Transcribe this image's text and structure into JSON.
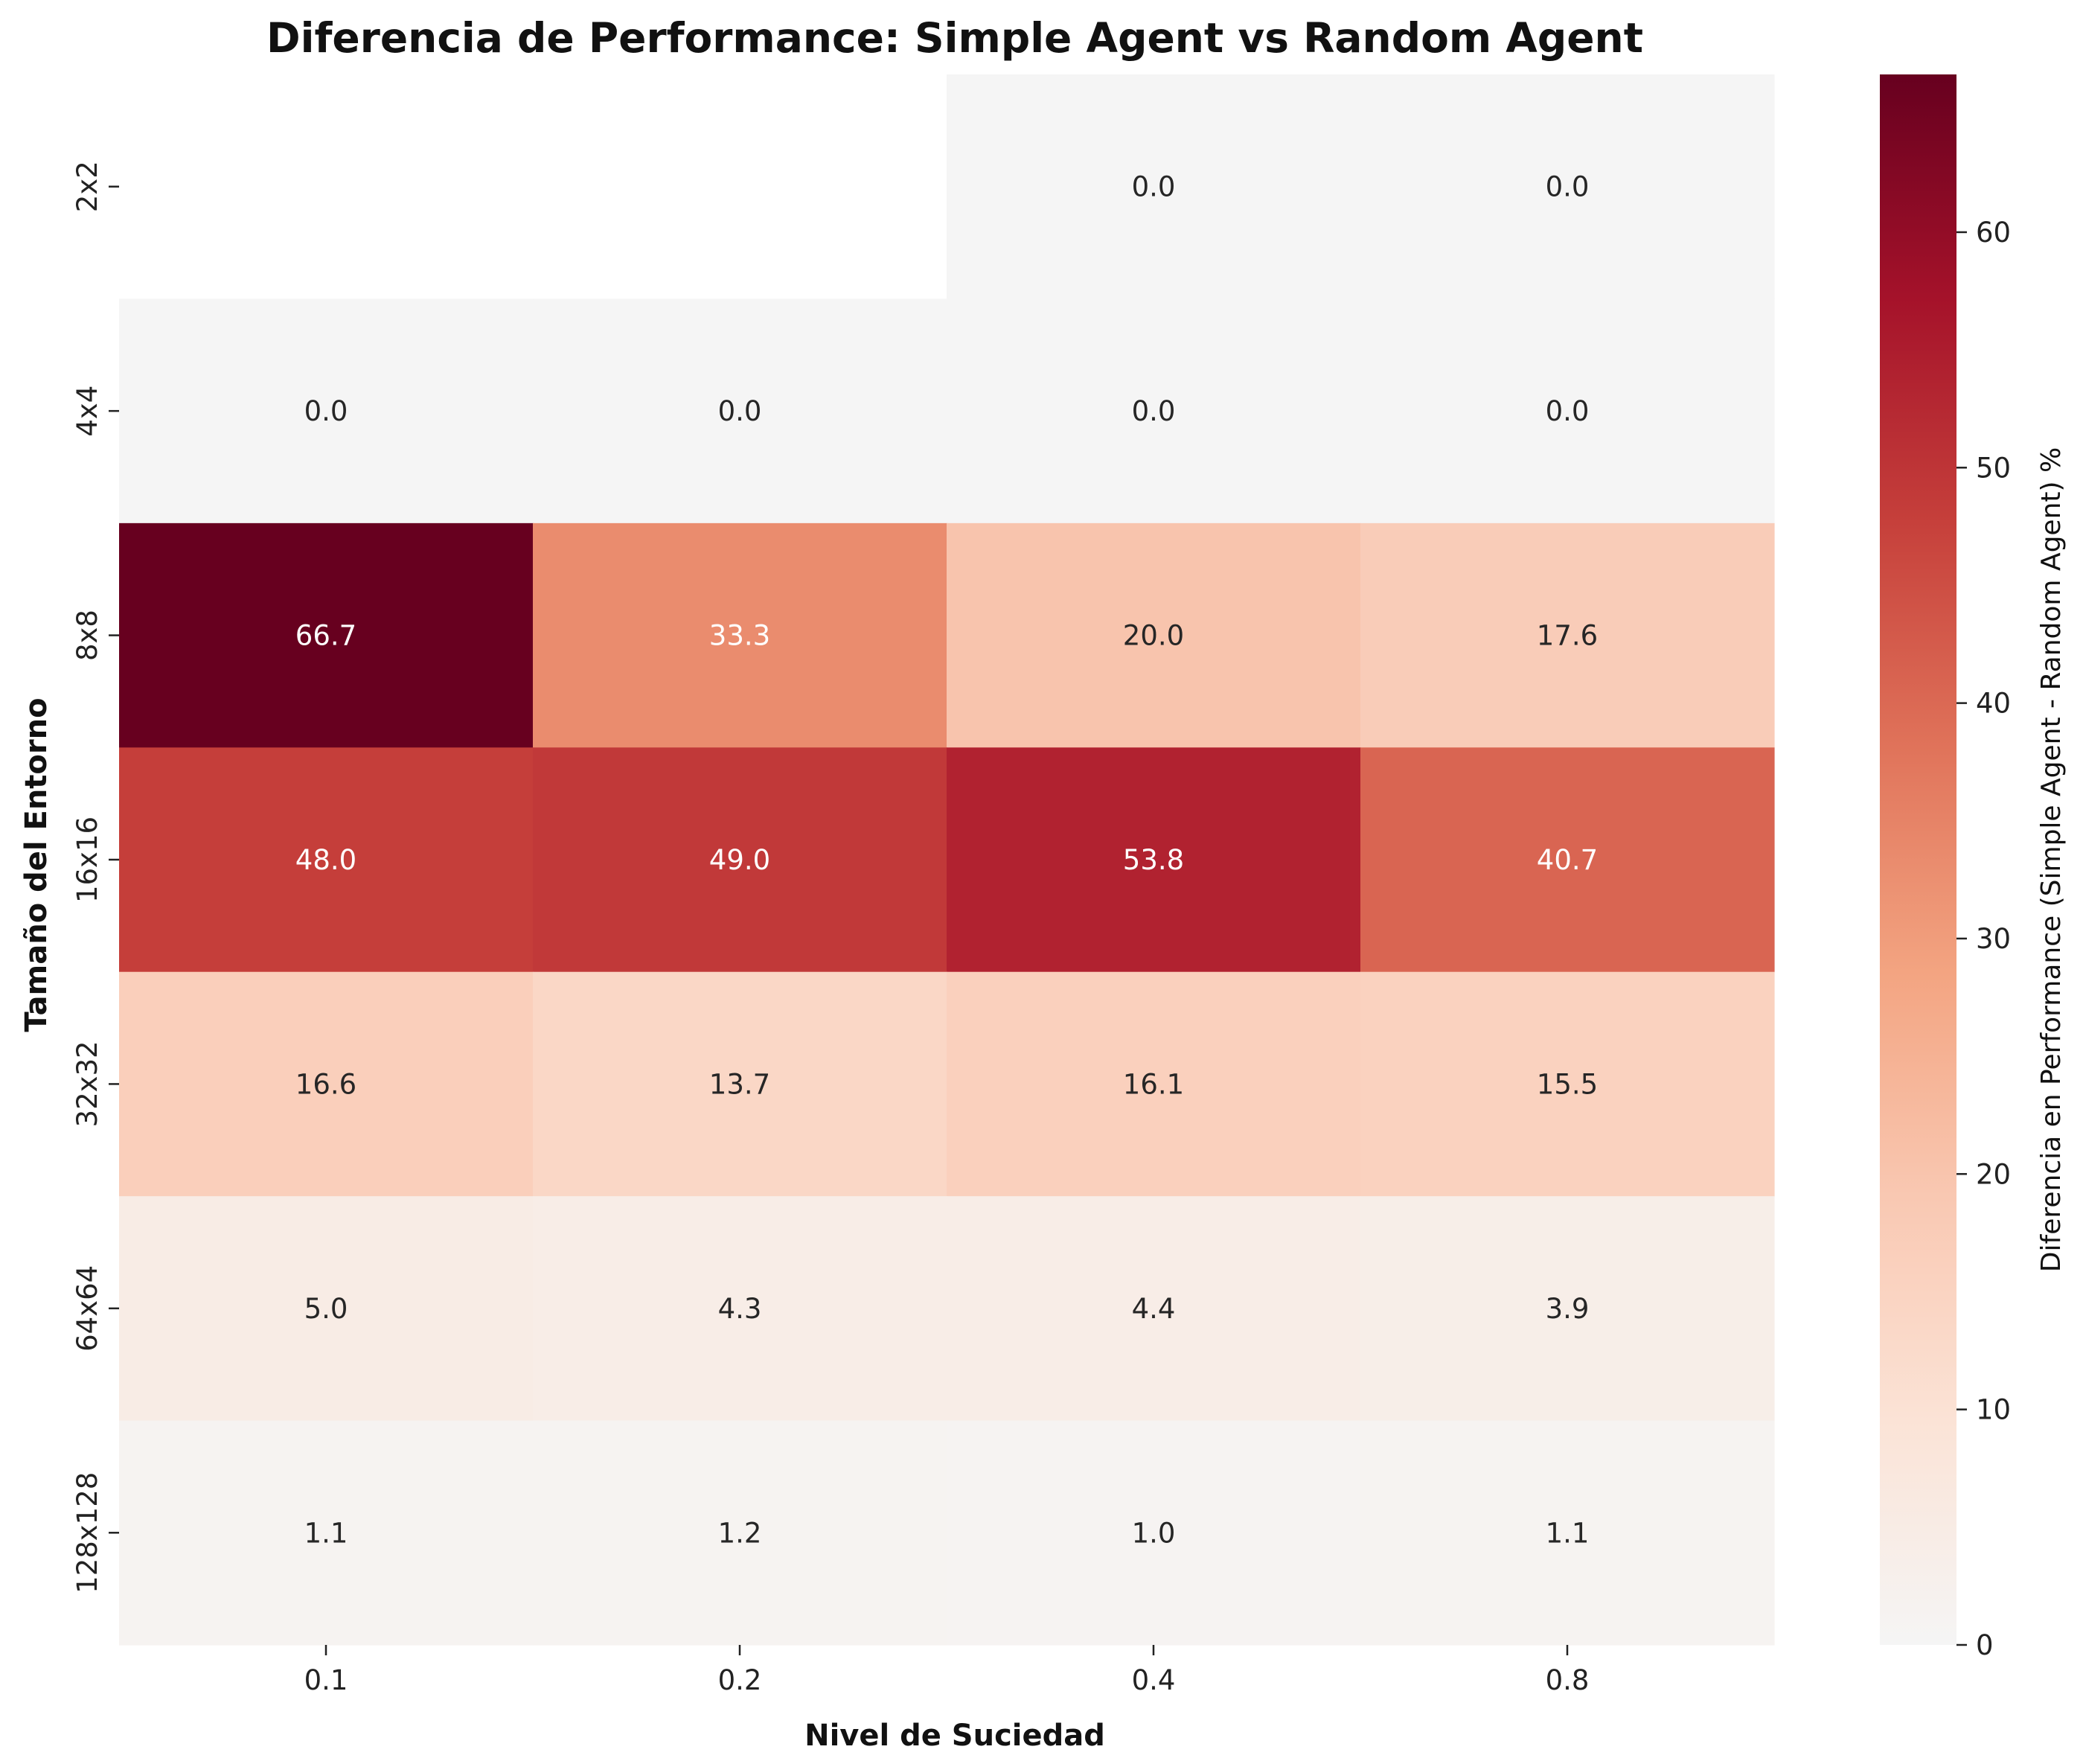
{
  "chart_data": {
    "type": "heatmap",
    "title": "Diferencia de Performance: Simple Agent vs Random Agent",
    "xlabel": "Nivel de Suciedad",
    "ylabel": "Tamaño del Entorno",
    "x_categories": [
      "0.1",
      "0.2",
      "0.4",
      "0.8"
    ],
    "y_categories": [
      "2x2",
      "4x4",
      "8x8",
      "16x16",
      "32x32",
      "64x64",
      "128x128"
    ],
    "values": [
      [
        null,
        null,
        0.0,
        0.0
      ],
      [
        0.0,
        0.0,
        0.0,
        0.0
      ],
      [
        66.7,
        33.3,
        20.0,
        17.6
      ],
      [
        48.0,
        49.0,
        53.8,
        40.7
      ],
      [
        16.6,
        13.7,
        16.1,
        15.5
      ],
      [
        5.0,
        4.3,
        4.4,
        3.9
      ],
      [
        1.1,
        1.2,
        1.0,
        1.1
      ]
    ],
    "value_labels": [
      [
        "",
        "",
        "0.0",
        "0.0"
      ],
      [
        "0.0",
        "0.0",
        "0.0",
        "0.0"
      ],
      [
        "66.7",
        "33.3",
        "20.0",
        "17.6"
      ],
      [
        "48.0",
        "49.0",
        "53.8",
        "40.7"
      ],
      [
        "16.6",
        "13.7",
        "16.1",
        "15.5"
      ],
      [
        "5.0",
        "4.3",
        "4.4",
        "3.9"
      ],
      [
        "1.1",
        "1.2",
        "1.0",
        "1.1"
      ]
    ],
    "colorbar": {
      "label": "Diferencia en Performance (Simple Agent - Random Agent) %",
      "vmin": 0,
      "vmax": 66.7,
      "ticks": [
        0,
        10,
        20,
        30,
        40,
        50,
        60
      ],
      "tick_labels": [
        "0",
        "10",
        "20",
        "30",
        "40",
        "50",
        "60"
      ],
      "colormap": "RdBu_r (upper half)",
      "colormap_stops": [
        "#f5f5f5",
        "#fbe3d6",
        "#f9c8b2",
        "#f3a481",
        "#e0735a",
        "#c6403b",
        "#a5122a",
        "#67001f"
      ]
    },
    "grid": false,
    "legend": "colorbar-right"
  }
}
